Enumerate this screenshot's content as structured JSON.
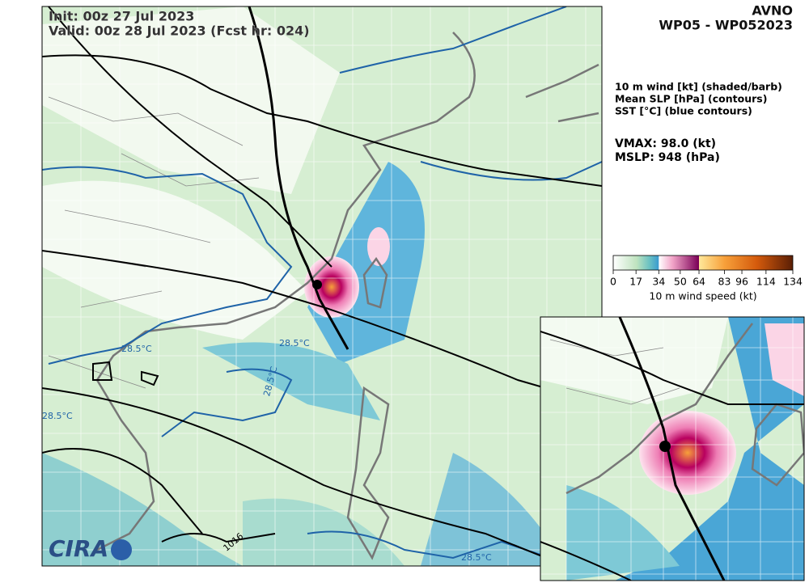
{
  "header": {
    "init": "Init:   00z 27 Jul 2023",
    "valid": "Valid: 00z 28 Jul 2023 (Fcst hr: 024)",
    "model": "AVNO",
    "storm": "WP05 - WP052023"
  },
  "legend": [
    "10 m wind [kt] (shaded/barb)",
    "Mean SLP [hPa] (contours)",
    "SST [°C] (blue contours)"
  ],
  "stats": {
    "vmax": "VMAX:  98.0 (kt)",
    "mslp": "MSLP:  948 (hPa)"
  },
  "colorbar": {
    "lim": [
      0,
      134
    ],
    "ticks": [
      0,
      17,
      34,
      50,
      64,
      83,
      96,
      114,
      134
    ],
    "label": "10 m wind speed (kt)"
  },
  "map": {
    "contour_labels": [
      "28.5°C",
      "28.5°C",
      "28.5°C",
      "28.5°C",
      "28.5°C",
      "1016"
    ],
    "logo": "CIRA"
  }
}
